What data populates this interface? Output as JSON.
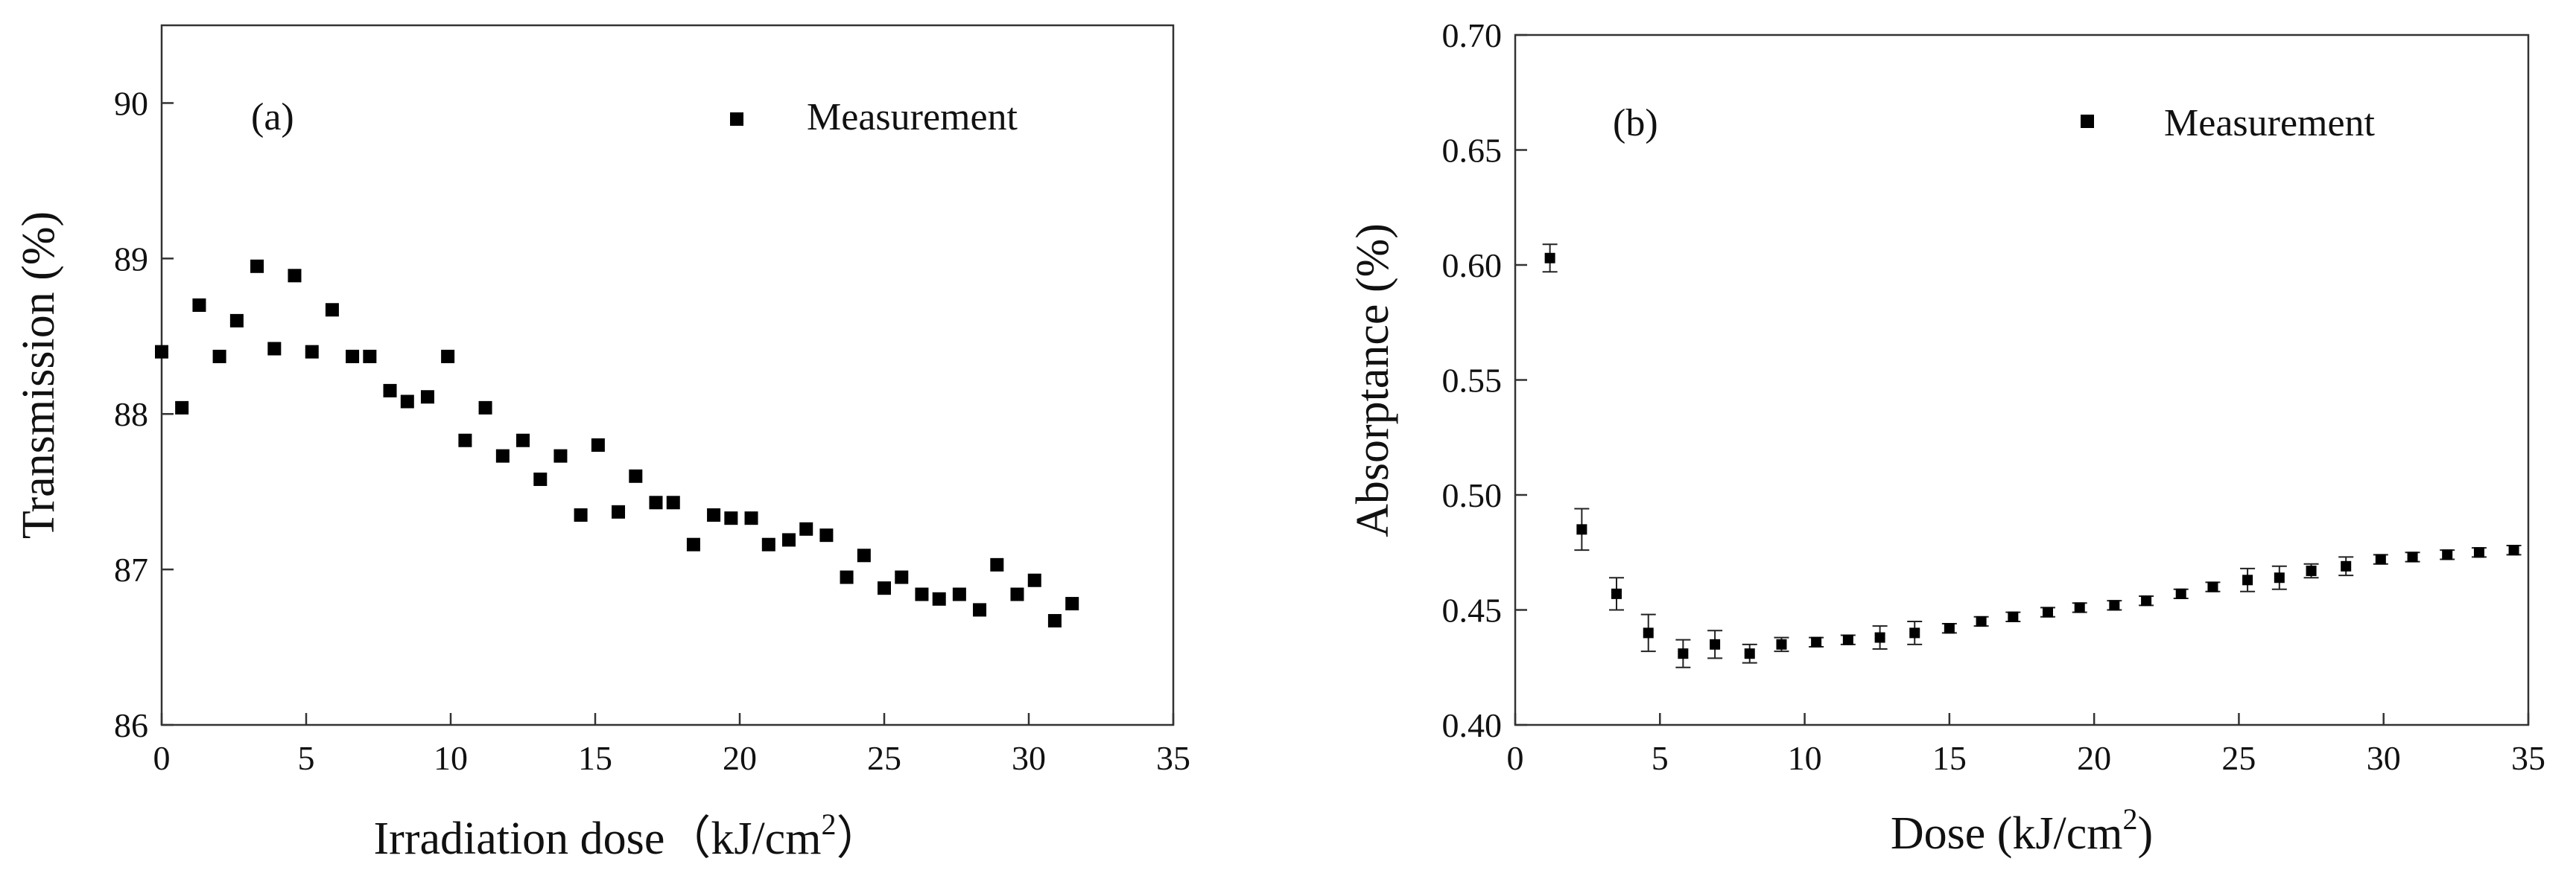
{
  "chart_data": [
    {
      "type": "scatter",
      "panel_label": "(a)",
      "xlabel_prefix": "Irradiation dose（kJ/cm",
      "xlabel_sup": "2",
      "xlabel_suffix": "）",
      "ylabel": "Transmission (%)",
      "xlim": [
        0,
        35
      ],
      "ylim": [
        86,
        90.5
      ],
      "x_ticks": [
        "0",
        "5",
        "10",
        "15",
        "20",
        "25",
        "30",
        "35"
      ],
      "y_ticks": [
        "86",
        "87",
        "88",
        "89",
        "90"
      ],
      "legend": "Measurement",
      "legend_position": "top-right",
      "grid": false,
      "series": [
        {
          "name": "Measurement",
          "points": [
            [
              0.0,
              88.4
            ],
            [
              0.7,
              88.04
            ],
            [
              1.3,
              88.7
            ],
            [
              2.0,
              88.37
            ],
            [
              2.6,
              88.6
            ],
            [
              3.3,
              88.95
            ],
            [
              3.9,
              88.42
            ],
            [
              4.6,
              88.89
            ],
            [
              5.2,
              88.4
            ],
            [
              5.9,
              88.67
            ],
            [
              6.6,
              88.37
            ],
            [
              7.2,
              88.37
            ],
            [
              7.9,
              88.15
            ],
            [
              8.5,
              88.08
            ],
            [
              9.2,
              88.11
            ],
            [
              9.9,
              88.37
            ],
            [
              10.5,
              87.83
            ],
            [
              11.2,
              88.04
            ],
            [
              11.8,
              87.73
            ],
            [
              12.5,
              87.83
            ],
            [
              13.1,
              87.58
            ],
            [
              13.8,
              87.73
            ],
            [
              14.5,
              87.35
            ],
            [
              15.1,
              87.8
            ],
            [
              15.8,
              87.37
            ],
            [
              16.4,
              87.6
            ],
            [
              17.1,
              87.43
            ],
            [
              17.7,
              87.43
            ],
            [
              18.4,
              87.16
            ],
            [
              19.1,
              87.35
            ],
            [
              19.7,
              87.33
            ],
            [
              20.4,
              87.33
            ],
            [
              21.0,
              87.16
            ],
            [
              21.7,
              87.19
            ],
            [
              22.3,
              87.26
            ],
            [
              23.0,
              87.22
            ],
            [
              23.7,
              86.95
            ],
            [
              24.3,
              87.09
            ],
            [
              25.0,
              86.88
            ],
            [
              25.6,
              86.95
            ],
            [
              26.3,
              86.84
            ],
            [
              26.9,
              86.81
            ],
            [
              27.6,
              86.84
            ],
            [
              28.3,
              86.74
            ],
            [
              28.9,
              87.03
            ],
            [
              29.6,
              86.84
            ],
            [
              30.2,
              86.93
            ],
            [
              30.9,
              86.67
            ],
            [
              31.5,
              86.78
            ]
          ]
        }
      ]
    },
    {
      "type": "scatter",
      "panel_label": "(b)",
      "xlabel_prefix": "Dose (kJ/cm",
      "xlabel_sup": "2",
      "xlabel_suffix": ")",
      "ylabel": "Absorptance (%)",
      "xlim": [
        0,
        35
      ],
      "ylim": [
        0.4,
        0.7
      ],
      "x_ticks": [
        "0",
        "5",
        "10",
        "15",
        "20",
        "25",
        "30",
        "35"
      ],
      "y_ticks": [
        "0.40",
        "0.45",
        "0.50",
        "0.55",
        "0.60",
        "0.65",
        "0.70"
      ],
      "legend": "Measurement",
      "legend_position": "top-right",
      "grid": false,
      "series": [
        {
          "name": "Measurement",
          "points": [
            [
              1.2,
              0.603,
              0.006
            ],
            [
              2.3,
              0.485,
              0.009
            ],
            [
              3.5,
              0.457,
              0.007
            ],
            [
              4.6,
              0.44,
              0.008
            ],
            [
              5.8,
              0.431,
              0.006
            ],
            [
              6.9,
              0.435,
              0.006
            ],
            [
              8.1,
              0.431,
              0.004
            ],
            [
              9.2,
              0.435,
              0.003
            ],
            [
              10.4,
              0.436,
              0.002
            ],
            [
              11.5,
              0.437,
              0.002
            ],
            [
              12.6,
              0.438,
              0.005
            ],
            [
              13.8,
              0.44,
              0.005
            ],
            [
              15.0,
              0.442,
              0.002
            ],
            [
              16.1,
              0.445,
              0.002
            ],
            [
              17.2,
              0.447,
              0.002
            ],
            [
              18.4,
              0.449,
              0.002
            ],
            [
              19.5,
              0.451,
              0.002
            ],
            [
              20.7,
              0.452,
              0.002
            ],
            [
              21.8,
              0.454,
              0.002
            ],
            [
              23.0,
              0.457,
              0.002
            ],
            [
              24.1,
              0.46,
              0.002
            ],
            [
              25.3,
              0.463,
              0.005
            ],
            [
              26.4,
              0.464,
              0.005
            ],
            [
              27.5,
              0.467,
              0.003
            ],
            [
              28.7,
              0.469,
              0.004
            ],
            [
              29.9,
              0.472,
              0.002
            ],
            [
              31.0,
              0.473,
              0.002
            ],
            [
              32.2,
              0.474,
              0.002
            ],
            [
              33.3,
              0.475,
              0.002
            ],
            [
              34.5,
              0.476,
              0.002
            ]
          ]
        }
      ]
    }
  ]
}
